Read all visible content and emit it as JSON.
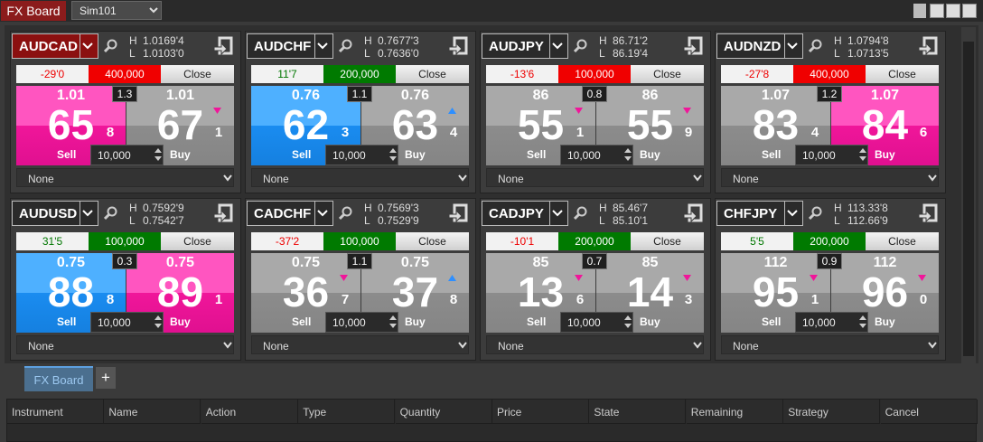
{
  "window": {
    "title": "FX Board",
    "account": "Sim101"
  },
  "labels": {
    "high": "H",
    "low": "L",
    "close": "Close",
    "sell": "Sell",
    "buy": "Buy",
    "strategy": "None"
  },
  "tiles": [
    {
      "instrument": "AUDCAD",
      "selected": true,
      "high": "1.0169'4",
      "low": "1.0103'0",
      "pnl": "-29'0",
      "position": "400,000",
      "position_color": "#f00000",
      "spread": "1.3",
      "quantity": "10,000",
      "sell": {
        "big": "1.01",
        "pips": "65",
        "frac": "8",
        "color": "pink",
        "arrow": null
      },
      "buy": {
        "big": "1.01",
        "pips": "67",
        "frac": "1",
        "color": "gray",
        "arrow": "down"
      }
    },
    {
      "instrument": "AUDCHF",
      "selected": false,
      "high": "0.7677'3",
      "low": "0.7636'0",
      "pnl": "11'7",
      "position": "200,000",
      "position_color": "#007a00",
      "spread": "1.1",
      "quantity": "10,000",
      "sell": {
        "big": "0.76",
        "pips": "62",
        "frac": "3",
        "color": "blue",
        "arrow": null
      },
      "buy": {
        "big": "0.76",
        "pips": "63",
        "frac": "4",
        "color": "gray",
        "arrow": "up"
      }
    },
    {
      "instrument": "AUDJPY",
      "selected": false,
      "high": "86.71'2",
      "low": "86.19'4",
      "pnl": "-13'6",
      "position": "100,000",
      "position_color": "#f00000",
      "spread": "0.8",
      "quantity": "10,000",
      "sell": {
        "big": "86",
        "pips": "55",
        "frac": "1",
        "color": "gray",
        "arrow": "down"
      },
      "buy": {
        "big": "86",
        "pips": "55",
        "frac": "9",
        "color": "gray",
        "arrow": "down"
      }
    },
    {
      "instrument": "AUDNZD",
      "selected": false,
      "high": "1.0794'8",
      "low": "1.0713'5",
      "pnl": "-27'8",
      "position": "400,000",
      "position_color": "#f00000",
      "spread": "1.2",
      "quantity": "10,000",
      "sell": {
        "big": "1.07",
        "pips": "83",
        "frac": "4",
        "color": "gray",
        "arrow": null
      },
      "buy": {
        "big": "1.07",
        "pips": "84",
        "frac": "6",
        "color": "pink",
        "arrow": null
      }
    },
    {
      "instrument": "AUDUSD",
      "selected": false,
      "high": "0.7592'9",
      "low": "0.7542'7",
      "pnl": "31'5",
      "position": "100,000",
      "position_color": "#007a00",
      "spread": "0.3",
      "quantity": "10,000",
      "sell": {
        "big": "0.75",
        "pips": "88",
        "frac": "8",
        "color": "blue",
        "arrow": null
      },
      "buy": {
        "big": "0.75",
        "pips": "89",
        "frac": "1",
        "color": "pink",
        "arrow": null
      }
    },
    {
      "instrument": "CADCHF",
      "selected": false,
      "high": "0.7569'3",
      "low": "0.7529'9",
      "pnl": "-37'2",
      "position": "100,000",
      "position_color": "#007a00",
      "spread": "1.1",
      "quantity": "10,000",
      "sell": {
        "big": "0.75",
        "pips": "36",
        "frac": "7",
        "color": "gray",
        "arrow": "down"
      },
      "buy": {
        "big": "0.75",
        "pips": "37",
        "frac": "8",
        "color": "gray",
        "arrow": "up"
      }
    },
    {
      "instrument": "CADJPY",
      "selected": false,
      "high": "85.46'7",
      "low": "85.10'1",
      "pnl": "-10'1",
      "position": "200,000",
      "position_color": "#007a00",
      "spread": "0.7",
      "quantity": "10,000",
      "sell": {
        "big": "85",
        "pips": "13",
        "frac": "6",
        "color": "gray",
        "arrow": "down"
      },
      "buy": {
        "big": "85",
        "pips": "14",
        "frac": "3",
        "color": "gray",
        "arrow": "down"
      }
    },
    {
      "instrument": "CHFJPY",
      "selected": false,
      "high": "113.33'8",
      "low": "112.66'9",
      "pnl": "5'5",
      "position": "200,000",
      "position_color": "#007a00",
      "spread": "0.9",
      "quantity": "10,000",
      "sell": {
        "big": "112",
        "pips": "95",
        "frac": "1",
        "color": "gray",
        "arrow": "down"
      },
      "buy": {
        "big": "112",
        "pips": "96",
        "frac": "0",
        "color": "gray",
        "arrow": "down"
      }
    }
  ],
  "tabs": {
    "active": "FX Board",
    "add": "+"
  },
  "columns": [
    "Instrument",
    "Name",
    "Action",
    "Type",
    "Quantity",
    "Price",
    "State",
    "Remaining",
    "Strategy",
    "Cancel"
  ]
}
